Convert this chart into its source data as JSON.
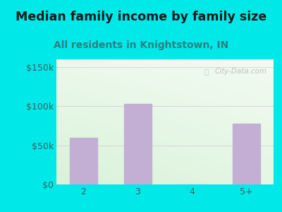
{
  "title": "Median family income by family size",
  "subtitle": "All residents in Knightstown, IN",
  "categories": [
    "2",
    "3",
    "4",
    "5+"
  ],
  "values": [
    60000,
    103000,
    0,
    78000
  ],
  "bar_color": "#c4afd4",
  "yticks": [
    0,
    50000,
    100000,
    150000
  ],
  "ytick_labels": [
    "$0",
    "$50k",
    "$100k",
    "$150k"
  ],
  "ylim": [
    0,
    160000
  ],
  "background_outer": "#00e8e8",
  "title_color": "#1a1a1a",
  "subtitle_color": "#2a8080",
  "tick_color": "#3a6060",
  "watermark_text": "City-Data.com",
  "title_fontsize": 12.5,
  "subtitle_fontsize": 10,
  "tick_fontsize": 9
}
